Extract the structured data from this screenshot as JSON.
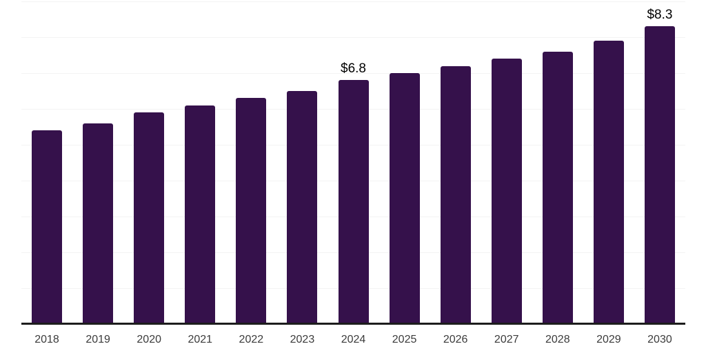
{
  "chart_data": {
    "type": "bar",
    "title": "",
    "xlabel": "",
    "ylabel": "",
    "categories": [
      "2018",
      "2019",
      "2020",
      "2021",
      "2022",
      "2023",
      "2024",
      "2025",
      "2026",
      "2027",
      "2028",
      "2029",
      "2030"
    ],
    "values": [
      5.4,
      5.6,
      5.9,
      6.1,
      6.3,
      6.5,
      6.8,
      7.0,
      7.2,
      7.4,
      7.6,
      7.9,
      8.3
    ],
    "data_labels": {
      "2024": "$6.8",
      "2030": "$8.3"
    },
    "ylim": [
      0,
      9
    ],
    "gridline_step": 1,
    "grid": true,
    "legend": "none",
    "colors": {
      "bar": "#35114B",
      "gridline": "#f3f3f3",
      "axis_line": "#1d1d1d",
      "tick_label": "#3b3b3b",
      "data_label": "#000000",
      "background": "#ffffff"
    }
  }
}
